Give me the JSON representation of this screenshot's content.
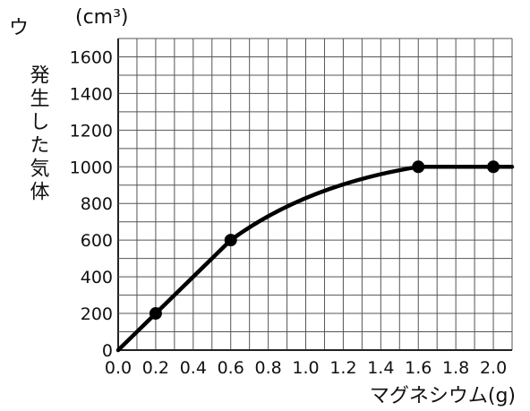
{
  "chart_data": {
    "type": "line",
    "panel_label": "ウ",
    "unit_label": "(cm³)",
    "ylabel": "発生した気体",
    "xlabel": "マグネシウム(g)",
    "xlim": [
      0,
      2.1
    ],
    "ylim": [
      0,
      1700
    ],
    "x_ticks": [
      "0.0",
      "0.2",
      "0.4",
      "0.6",
      "0.8",
      "1.0",
      "1.2",
      "1.4",
      "1.6",
      "1.8",
      "2.0"
    ],
    "y_ticks": [
      "0",
      "200",
      "400",
      "600",
      "800",
      "1000",
      "1200",
      "1400",
      "1600"
    ],
    "grid": true,
    "points": [
      {
        "x": 0.2,
        "y": 200
      },
      {
        "x": 0.6,
        "y": 600
      },
      {
        "x": 1.6,
        "y": 1000
      },
      {
        "x": 2.0,
        "y": 1000
      }
    ],
    "curve": [
      {
        "x": 0.0,
        "y": 0
      },
      {
        "x": 0.6,
        "y": 600
      },
      {
        "x": 1.0,
        "y": 900
      },
      {
        "x": 1.6,
        "y": 1000
      },
      {
        "x": 2.1,
        "y": 1000
      }
    ]
  }
}
